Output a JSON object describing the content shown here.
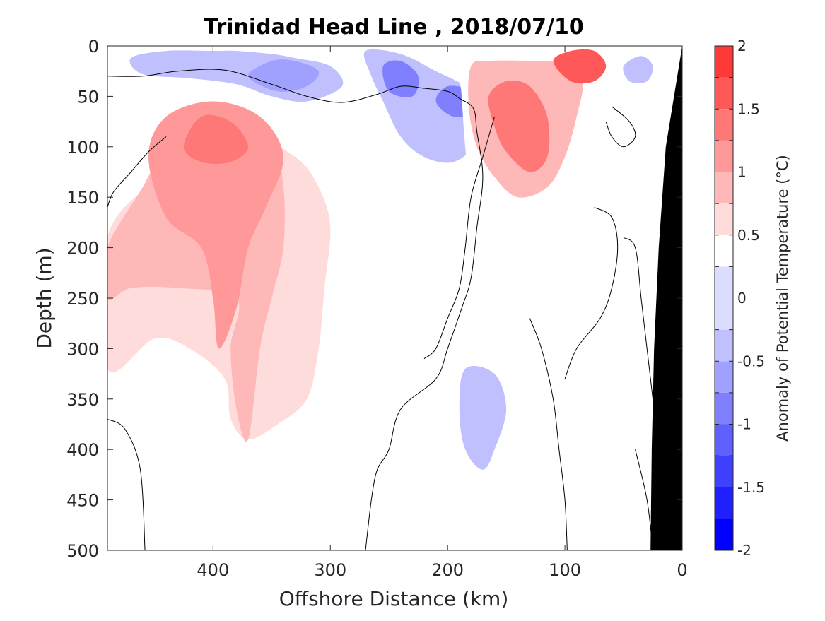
{
  "chart_data": {
    "type": "heatmap",
    "subtype": "filled-contour",
    "title": "Trinidad Head Line , 2018/07/10",
    "xlabel": "Offshore Distance (km)",
    "ylabel": "Depth (m)",
    "xlim": [
      490,
      0
    ],
    "ylim": [
      0,
      500
    ],
    "x_reversed": true,
    "y_reversed": true,
    "x_ticks": [
      400,
      300,
      200,
      100,
      0
    ],
    "x_tick_labels": [
      "400",
      "300",
      "200",
      "100",
      "0"
    ],
    "y_ticks": [
      0,
      50,
      100,
      150,
      200,
      250,
      300,
      350,
      400,
      450,
      500
    ],
    "y_tick_labels": [
      "0",
      "50",
      "100",
      "150",
      "200",
      "250",
      "300",
      "350",
      "400",
      "450",
      "500"
    ],
    "colorbar": {
      "label": "Anomaly of Potential Temperature (°C)",
      "range": [
        -2,
        2
      ],
      "ticks": [
        2,
        1.5,
        1,
        0.5,
        0,
        -0.5,
        -1,
        -1.5,
        -2
      ],
      "tick_labels": [
        "2",
        "1.5",
        "1",
        "0.5",
        "0",
        "-0.5",
        "-1",
        "-1.5",
        "-2"
      ],
      "levels": [
        -2,
        -1.75,
        -1.5,
        -1.25,
        -1,
        -0.75,
        -0.5,
        -0.25,
        0.25,
        0.5,
        0.75,
        1,
        1.25,
        1.5,
        1.75,
        2
      ],
      "colors": [
        "#0000ff",
        "#2020ff",
        "#4040ff",
        "#6060ff",
        "#8080ff",
        "#a0a0ff",
        "#c0c0ff",
        "#dcdcff",
        "#ffffff",
        "#ffdcdc",
        "#ffb8b8",
        "#ff9898",
        "#ff7878",
        "#ff5858",
        "#ff3838",
        "#ff0000"
      ]
    },
    "bathymetry_color": "#000000",
    "regions": [
      {
        "value": 0.375,
        "points": [
          [
            490,
            180
          ],
          [
            440,
            120
          ],
          [
            420,
            75
          ],
          [
            370,
            80
          ],
          [
            330,
            105
          ],
          [
            300,
            140
          ],
          [
            275,
            180
          ],
          [
            265,
            240
          ],
          [
            270,
            300
          ],
          [
            285,
            345
          ],
          [
            320,
            365
          ],
          [
            350,
            380
          ],
          [
            360,
            400
          ],
          [
            360,
            500
          ],
          [
            490,
            500
          ]
        ]
      },
      {
        "value": 0.625,
        "points": [
          [
            490,
            190
          ],
          [
            450,
            130
          ],
          [
            430,
            80
          ],
          [
            380,
            80
          ],
          [
            330,
            110
          ],
          [
            310,
            140
          ],
          [
            300,
            180
          ],
          [
            305,
            240
          ],
          [
            310,
            300
          ],
          [
            320,
            350
          ],
          [
            345,
            375
          ],
          [
            370,
            390
          ],
          [
            385,
            370
          ],
          [
            390,
            330
          ],
          [
            420,
            300
          ],
          [
            450,
            290
          ],
          [
            490,
            320
          ]
        ]
      },
      {
        "value": 0.875,
        "points": [
          [
            490,
            200
          ],
          [
            460,
            140
          ],
          [
            430,
            80
          ],
          [
            390,
            78
          ],
          [
            350,
            100
          ],
          [
            340,
            140
          ],
          [
            340,
            200
          ],
          [
            350,
            250
          ],
          [
            360,
            300
          ],
          [
            370,
            390
          ],
          [
            380,
            360
          ],
          [
            385,
            300
          ],
          [
            380,
            250
          ],
          [
            430,
            240
          ],
          [
            470,
            240
          ],
          [
            490,
            250
          ]
        ]
      },
      {
        "value": 1.125,
        "points": [
          [
            455,
            110
          ],
          [
            440,
            70
          ],
          [
            400,
            55
          ],
          [
            360,
            70
          ],
          [
            340,
            110
          ],
          [
            355,
            160
          ],
          [
            370,
            200
          ],
          [
            380,
            260
          ],
          [
            395,
            300
          ],
          [
            400,
            250
          ],
          [
            410,
            200
          ],
          [
            440,
            170
          ]
        ]
      },
      {
        "value": 1.375,
        "points": [
          [
            425,
            100
          ],
          [
            410,
            70
          ],
          [
            385,
            75
          ],
          [
            370,
            100
          ],
          [
            385,
            115
          ],
          [
            410,
            115
          ]
        ]
      },
      {
        "value": -0.375,
        "points": [
          [
            470,
            12
          ],
          [
            440,
            5
          ],
          [
            400,
            5
          ],
          [
            380,
            5
          ],
          [
            350,
            8
          ],
          [
            330,
            12
          ],
          [
            300,
            20
          ],
          [
            290,
            40
          ],
          [
            320,
            55
          ],
          [
            350,
            50
          ],
          [
            380,
            38
          ],
          [
            420,
            32
          ],
          [
            460,
            28
          ]
        ]
      },
      {
        "value": -0.625,
        "points": [
          [
            370,
            30
          ],
          [
            350,
            15
          ],
          [
            330,
            15
          ],
          [
            310,
            25
          ],
          [
            320,
            40
          ],
          [
            345,
            45
          ]
        ]
      },
      {
        "value": -0.375,
        "points": [
          [
            270,
            5
          ],
          [
            240,
            8
          ],
          [
            210,
            25
          ],
          [
            185,
            40
          ],
          [
            170,
            60
          ],
          [
            175,
            95
          ],
          [
            195,
            115
          ],
          [
            220,
            110
          ],
          [
            240,
            90
          ],
          [
            255,
            55
          ],
          [
            265,
            30
          ]
        ]
      },
      {
        "value": -0.875,
        "points": [
          [
            255,
            20
          ],
          [
            240,
            15
          ],
          [
            225,
            30
          ],
          [
            230,
            50
          ],
          [
            250,
            45
          ]
        ]
      },
      {
        "value": -0.875,
        "points": [
          [
            200,
            40
          ],
          [
            180,
            45
          ],
          [
            175,
            65
          ],
          [
            195,
            70
          ],
          [
            210,
            55
          ]
        ]
      },
      {
        "value": -0.375,
        "points": [
          [
            185,
            320
          ],
          [
            160,
            325
          ],
          [
            150,
            360
          ],
          [
            160,
            400
          ],
          [
            170,
            420
          ],
          [
            185,
            400
          ],
          [
            190,
            360
          ]
        ]
      },
      {
        "value": 0.375,
        "points": [
          [
            190,
            10
          ],
          [
            170,
            5
          ],
          [
            110,
            5
          ],
          [
            80,
            5
          ],
          [
            55,
            15
          ],
          [
            50,
            40
          ],
          [
            60,
            60
          ],
          [
            70,
            90
          ],
          [
            75,
            130
          ],
          [
            90,
            170
          ],
          [
            110,
            200
          ],
          [
            125,
            220
          ],
          [
            150,
            210
          ],
          [
            170,
            190
          ],
          [
            180,
            150
          ],
          [
            185,
            100
          ],
          [
            188,
            50
          ]
        ]
      },
      {
        "value": 0.875,
        "points": [
          [
            180,
            20
          ],
          [
            165,
            15
          ],
          [
            130,
            15
          ],
          [
            100,
            18
          ],
          [
            85,
            35
          ],
          [
            90,
            70
          ],
          [
            100,
            110
          ],
          [
            115,
            140
          ],
          [
            140,
            150
          ],
          [
            160,
            130
          ],
          [
            175,
            100
          ],
          [
            182,
            60
          ]
        ]
      },
      {
        "value": 1.375,
        "points": [
          [
            165,
            50
          ],
          [
            150,
            35
          ],
          [
            130,
            40
          ],
          [
            115,
            70
          ],
          [
            115,
            110
          ],
          [
            130,
            125
          ],
          [
            150,
            105
          ],
          [
            160,
            80
          ]
        ]
      },
      {
        "value": 1.625,
        "points": [
          [
            110,
            15
          ],
          [
            95,
            5
          ],
          [
            75,
            5
          ],
          [
            65,
            20
          ],
          [
            75,
            35
          ],
          [
            95,
            35
          ]
        ]
      },
      {
        "value": -0.375,
        "points": [
          [
            50,
            20
          ],
          [
            35,
            10
          ],
          [
            25,
            20
          ],
          [
            30,
            35
          ],
          [
            45,
            35
          ]
        ]
      },
      {
        "value": 0.375,
        "points": [
          [
            470,
            395
          ],
          [
            440,
            390
          ],
          [
            420,
            420
          ],
          [
            430,
            470
          ],
          [
            460,
            480
          ],
          [
            480,
            450
          ]
        ]
      }
    ],
    "zero_contour_paths": [
      [
        [
          490,
          30
        ],
        [
          460,
          30
        ],
        [
          430,
          25
        ],
        [
          390,
          24
        ],
        [
          350,
          38
        ],
        [
          320,
          50
        ],
        [
          290,
          56
        ],
        [
          260,
          48
        ],
        [
          240,
          40
        ],
        [
          220,
          42
        ],
        [
          200,
          45
        ],
        [
          190,
          52
        ],
        [
          178,
          62
        ],
        [
          175,
          85
        ],
        [
          170,
          130
        ],
        [
          175,
          180
        ],
        [
          180,
          230
        ],
        [
          188,
          260
        ],
        [
          200,
          300
        ],
        [
          210,
          330
        ],
        [
          240,
          360
        ],
        [
          250,
          400
        ],
        [
          260,
          420
        ],
        [
          265,
          450
        ],
        [
          270,
          500
        ]
      ],
      [
        [
          490,
          160
        ],
        [
          485,
          145
        ],
        [
          470,
          125
        ],
        [
          455,
          105
        ],
        [
          440,
          90
        ]
      ],
      [
        [
          490,
          370
        ],
        [
          475,
          380
        ],
        [
          462,
          420
        ],
        [
          458,
          500
        ]
      ],
      [
        [
          160,
          70
        ],
        [
          170,
          110
        ],
        [
          180,
          150
        ],
        [
          185,
          200
        ],
        [
          190,
          240
        ],
        [
          200,
          270
        ],
        [
          210,
          300
        ],
        [
          220,
          310
        ]
      ],
      [
        [
          130,
          270
        ],
        [
          120,
          300
        ],
        [
          110,
          350
        ],
        [
          105,
          400
        ],
        [
          100,
          450
        ],
        [
          98,
          500
        ]
      ],
      [
        [
          75,
          160
        ],
        [
          60,
          170
        ],
        [
          55,
          200
        ],
        [
          60,
          240
        ],
        [
          70,
          270
        ],
        [
          90,
          300
        ],
        [
          100,
          330
        ]
      ],
      [
        [
          50,
          190
        ],
        [
          40,
          200
        ],
        [
          35,
          250
        ],
        [
          30,
          300
        ],
        [
          25,
          350
        ]
      ],
      [
        [
          60,
          60
        ],
        [
          45,
          75
        ],
        [
          40,
          90
        ],
        [
          50,
          100
        ],
        [
          60,
          90
        ],
        [
          65,
          75
        ]
      ],
      [
        [
          40,
          400
        ],
        [
          30,
          450
        ],
        [
          25,
          500
        ]
      ]
    ],
    "bathymetry": [
      [
        0,
        0
      ],
      [
        7,
        50
      ],
      [
        14,
        100
      ],
      [
        20,
        200
      ],
      [
        24,
        300
      ],
      [
        26,
        400
      ],
      [
        27,
        500
      ],
      [
        0,
        500
      ]
    ]
  }
}
